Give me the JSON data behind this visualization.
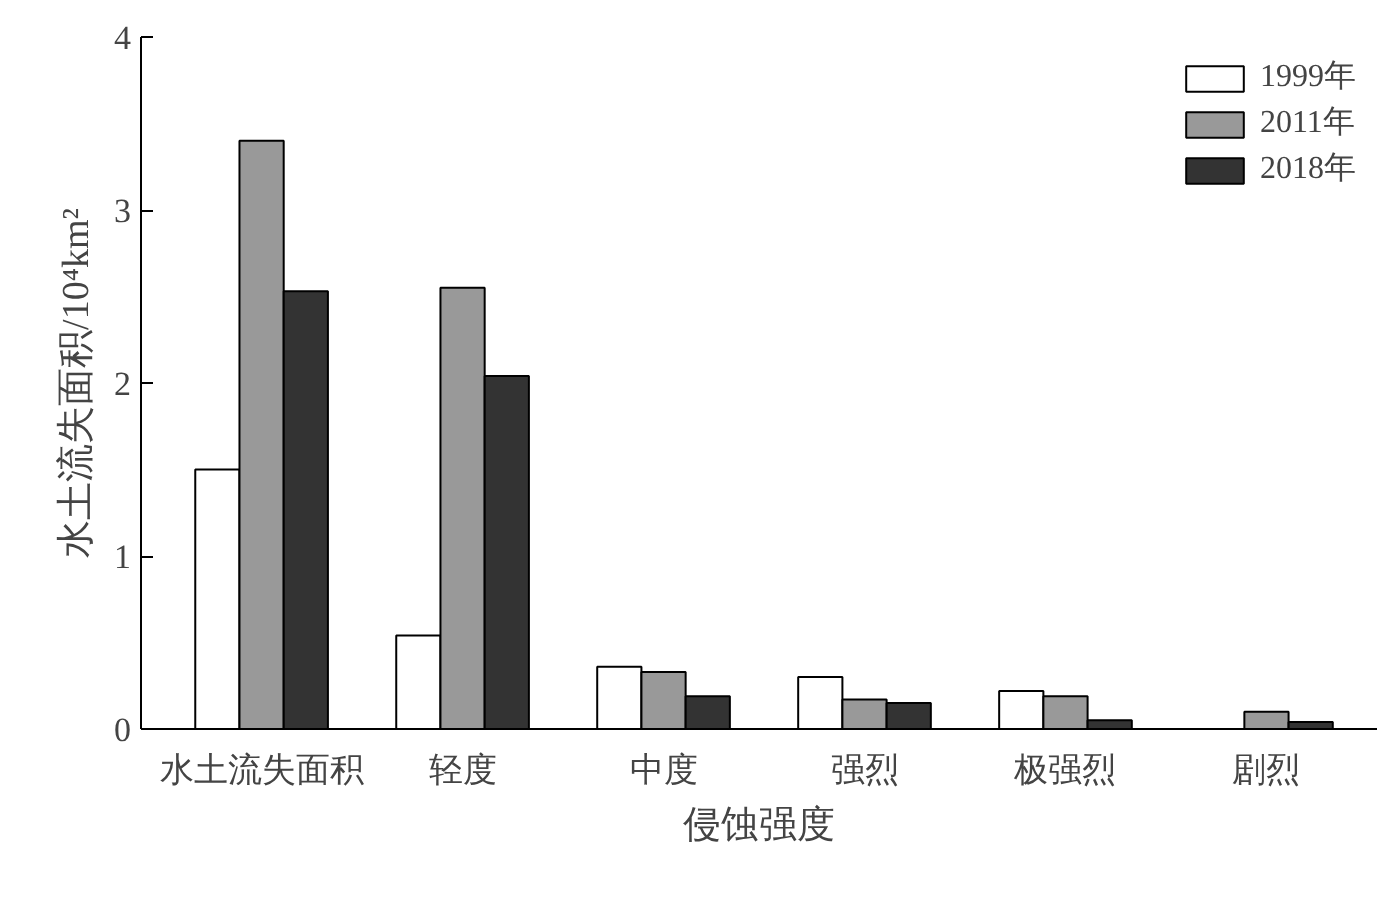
{
  "chart_data": {
    "type": "bar",
    "xlabel": "侵蚀强度",
    "ylabel": "水土流失面积/10⁴km²",
    "categories": [
      "水土流失面积",
      "轻度",
      "中度",
      "强烈",
      "极强烈",
      "剧烈"
    ],
    "series": [
      {
        "name": "1999年",
        "color": "#ffffff",
        "values": [
          1.5,
          0.54,
          0.36,
          0.3,
          0.22,
          null
        ]
      },
      {
        "name": "2011年",
        "color": "#999999",
        "values": [
          3.4,
          2.55,
          0.33,
          0.17,
          0.19,
          0.1
        ]
      },
      {
        "name": "2018年",
        "color": "#333333",
        "values": [
          2.53,
          2.04,
          0.19,
          0.15,
          0.05,
          0.04
        ]
      }
    ],
    "ylim": [
      0,
      4
    ],
    "yticks": [
      0,
      1,
      2,
      3,
      4
    ],
    "grid": false,
    "legend": "top right"
  }
}
